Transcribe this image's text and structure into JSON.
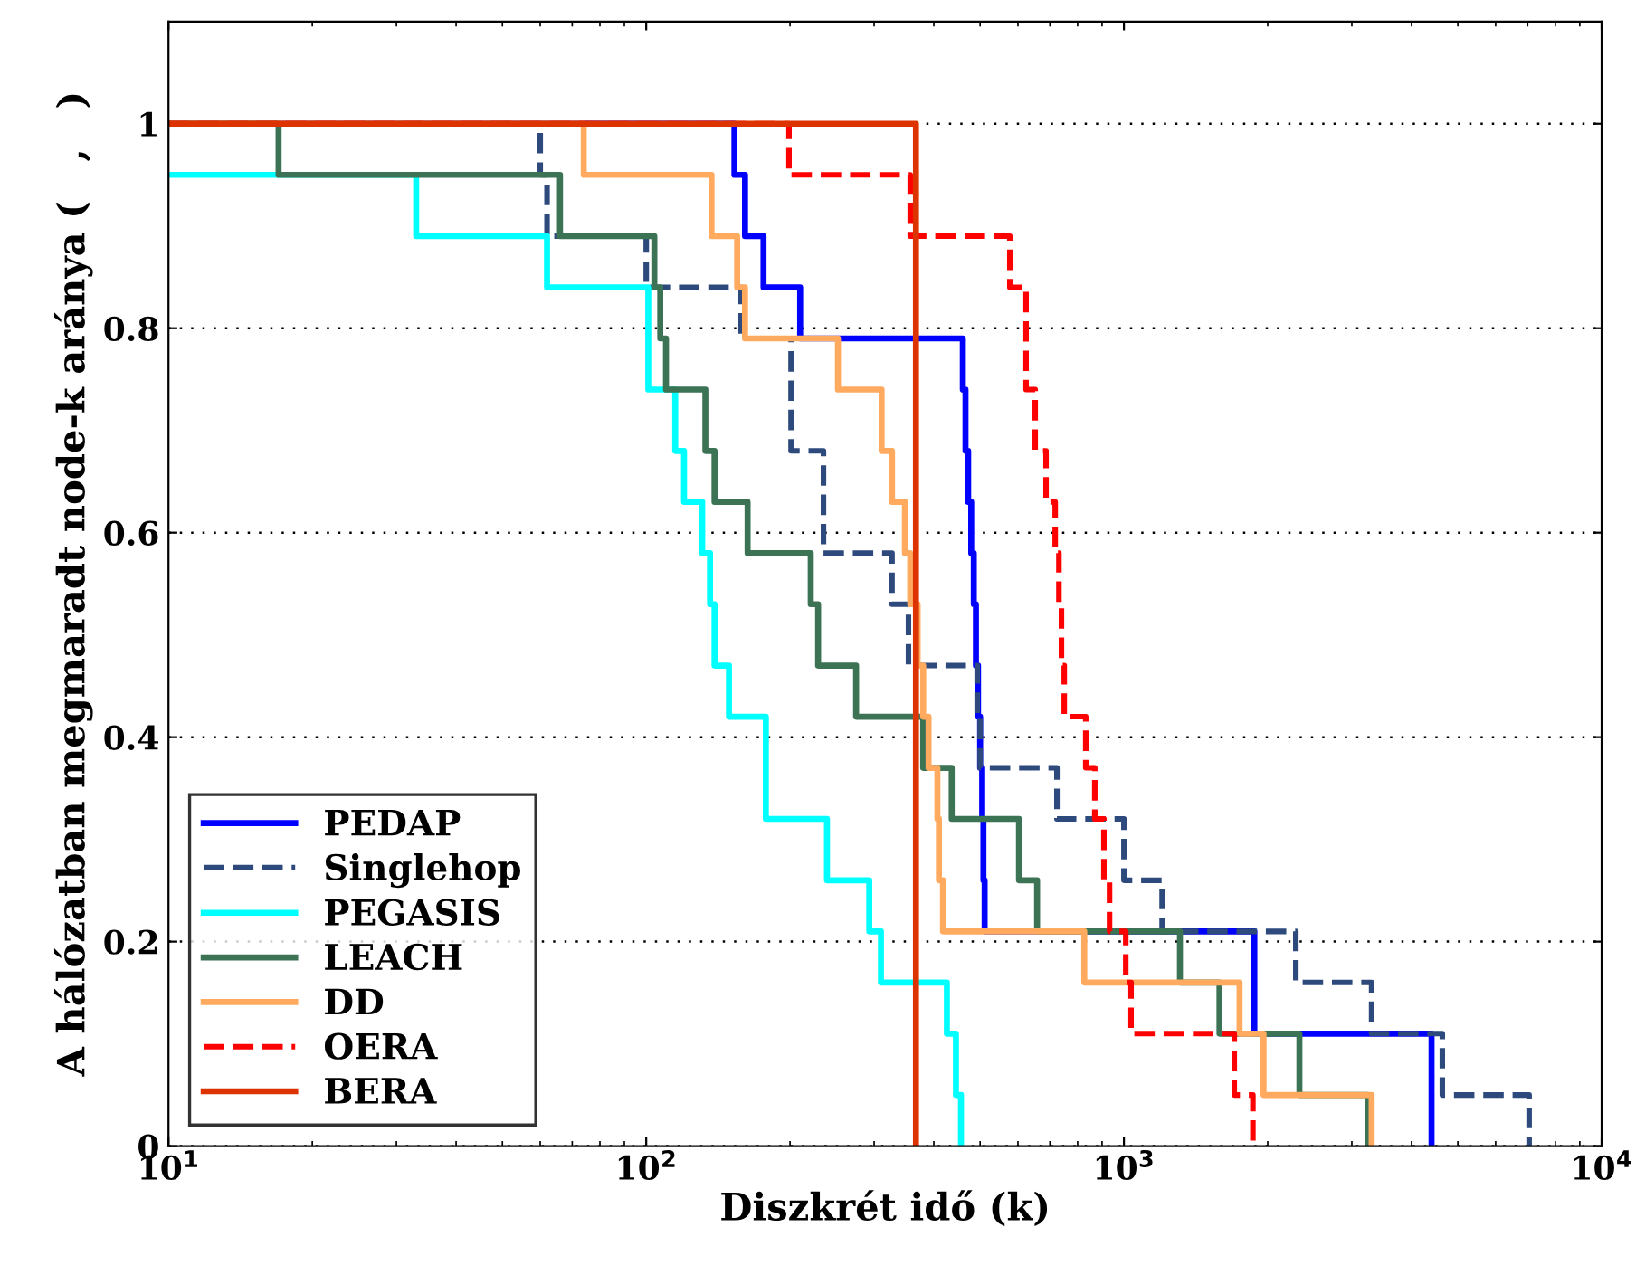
{
  "chart_data": {
    "type": "step",
    "xlabel": "Diszkrét idő (k)",
    "ylabel": "A hálózatban megmaradt node-k aránya (   ,   )",
    "log": "x",
    "xlim": [
      10,
      10000
    ],
    "xticks": [
      {
        "value": 10,
        "label": "10$^{1}$"
      },
      {
        "value": 100,
        "label": "10$^{2}$"
      },
      {
        "value": 1000,
        "label": "10$^{3}$"
      },
      {
        "value": 10000,
        "label": "10$^{4}$"
      }
    ],
    "ylim": [
      0,
      1.1
    ],
    "yticks": [
      0,
      0.2,
      0.4,
      0.6,
      0.8,
      1
    ],
    "grid": "y",
    "legend": "bottom left",
    "series": [
      {
        "name": "PEDAP",
        "color": "#0000ff",
        "line_style": "solid",
        "x": [
          10,
          153,
          161,
          176,
          210,
          460,
          466,
          472,
          479,
          485,
          490,
          495,
          500,
          505,
          508,
          511,
          1875,
          4405
        ],
        "values": [
          1,
          0.95,
          0.89,
          0.84,
          0.79,
          0.74,
          0.68,
          0.63,
          0.58,
          0.53,
          0.47,
          0.42,
          0.37,
          0.32,
          0.26,
          0.21,
          0.11,
          0
        ]
      },
      {
        "name": "Singlehop",
        "color": "#2e4a7d",
        "line_style": "dashed",
        "x": [
          10,
          60,
          62,
          100,
          158,
          201,
          235,
          327,
          354,
          493,
          500,
          724,
          1000,
          1202,
          2290,
          3300,
          4640,
          7050
        ],
        "values": [
          1,
          0.95,
          0.89,
          0.84,
          0.79,
          0.68,
          0.58,
          0.53,
          0.47,
          0.42,
          0.37,
          0.32,
          0.26,
          0.21,
          0.16,
          0.11,
          0.05,
          0
        ]
      },
      {
        "name": "PEGASIS",
        "color": "#00ffff",
        "line_style": "solid",
        "x": [
          10,
          33,
          62,
          101,
          115,
          120,
          131,
          136,
          139,
          149,
          178,
          239,
          293,
          310,
          426,
          445,
          456
        ],
        "values": [
          0.95,
          0.89,
          0.84,
          0.74,
          0.68,
          0.63,
          0.58,
          0.53,
          0.47,
          0.42,
          0.32,
          0.26,
          0.21,
          0.16,
          0.11,
          0.05,
          0
        ]
      },
      {
        "name": "LEACH",
        "color": "#3d7355",
        "line_style": "solid",
        "x": [
          10,
          17,
          66,
          104,
          107,
          110,
          133,
          139,
          163,
          221,
          229,
          275,
          380,
          436,
          603,
          658,
          1310,
          1585,
          2330,
          3240
        ],
        "values": [
          1,
          0.95,
          0.89,
          0.84,
          0.79,
          0.74,
          0.68,
          0.63,
          0.58,
          0.53,
          0.47,
          0.42,
          0.37,
          0.32,
          0.26,
          0.21,
          0.16,
          0.11,
          0.05,
          0
        ]
      },
      {
        "name": "DD",
        "color": "#ffaa5f",
        "line_style": "solid",
        "x": [
          10,
          74,
          137,
          155,
          161,
          252,
          311,
          327,
          348,
          357,
          370,
          380,
          390,
          407,
          410,
          418,
          826,
          1746,
          1960,
          3300
        ],
        "values": [
          1,
          0.95,
          0.89,
          0.84,
          0.79,
          0.74,
          0.68,
          0.63,
          0.58,
          0.53,
          0.47,
          0.42,
          0.37,
          0.32,
          0.26,
          0.21,
          0.16,
          0.11,
          0.05,
          0
        ]
      },
      {
        "name": "OERA",
        "color": "#ff0000",
        "line_style": "dashed",
        "x": [
          10,
          199,
          357,
          577,
          624,
          652,
          687,
          718,
          731,
          740,
          750,
          832,
          869,
          908,
          933,
          1009,
          1035,
          1702,
          1862
        ],
        "values": [
          1,
          0.95,
          0.89,
          0.84,
          0.74,
          0.68,
          0.63,
          0.58,
          0.53,
          0.47,
          0.42,
          0.37,
          0.32,
          0.26,
          0.21,
          0.16,
          0.11,
          0.05,
          0
        ]
      },
      {
        "name": "BERA",
        "color": "#dd3300",
        "line_style": "solid",
        "x": [
          10,
          367
        ],
        "values": [
          1,
          0
        ]
      }
    ]
  }
}
